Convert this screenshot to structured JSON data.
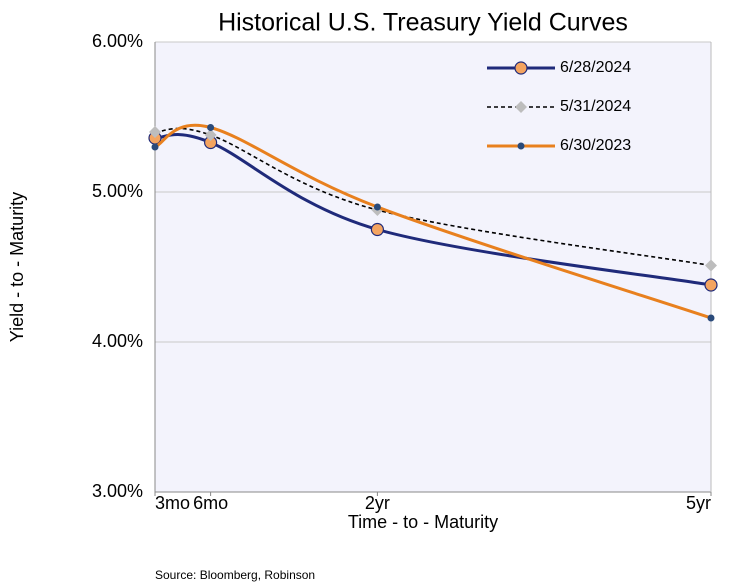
{
  "chart_data": {
    "type": "line",
    "title": "Historical U.S. Treasury Yield Curves",
    "x_label": "Time - to - Maturity",
    "y_label": "Yield - to - Maturity",
    "source": "Source: Bloomberg, Robinson",
    "x": [
      0,
      0.5,
      2,
      5
    ],
    "xlim": [
      0,
      5
    ],
    "xticks": [
      {
        "value": 0,
        "label": "3mo"
      },
      {
        "value": 0.5,
        "label": "6mo"
      },
      {
        "value": 2,
        "label": "2yr"
      },
      {
        "value": 5,
        "label": "5yr"
      }
    ],
    "ylim": [
      3,
      6
    ],
    "yticks": [
      {
        "value": 3,
        "label": "3.00%"
      },
      {
        "value": 4,
        "label": "4.00%"
      },
      {
        "value": 5,
        "label": "5.00%"
      },
      {
        "value": 6,
        "label": "6.00%"
      }
    ],
    "grid": true,
    "legend": "upper right",
    "series": [
      {
        "name": "6/28/2024",
        "color": "#1f2a7a",
        "marker_color": "#f4a460",
        "marker": "circle",
        "dash": false,
        "values": [
          5.36,
          5.33,
          4.75,
          4.38
        ]
      },
      {
        "name": "5/31/2024",
        "color": "#000000",
        "marker_color": "#bdbdbd",
        "marker": "diamond",
        "dash": true,
        "values": [
          5.4,
          5.38,
          4.88,
          4.51
        ]
      },
      {
        "name": "6/30/2023",
        "color": "#e8801e",
        "marker_color": "#2a4a7a",
        "marker": "dot",
        "dash": false,
        "values": [
          5.3,
          5.43,
          4.9,
          4.16
        ]
      }
    ]
  }
}
